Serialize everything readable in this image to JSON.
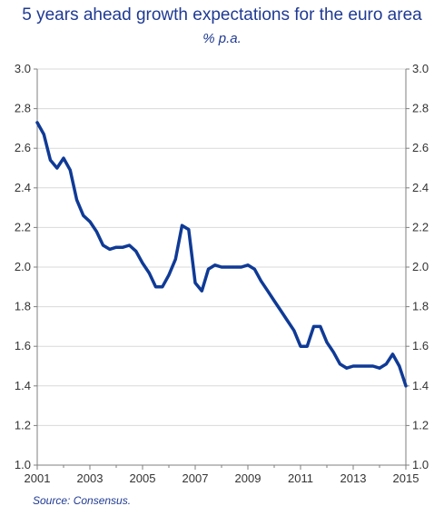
{
  "chart_data": {
    "type": "line",
    "title": "5 years ahead growth expectations for the euro area",
    "subtitle": "% p.a.",
    "xlabel": "",
    "ylabel": "",
    "xlim": [
      2001,
      2015
    ],
    "ylim": [
      1.0,
      3.0
    ],
    "x_ticks": [
      "2001",
      "2003",
      "2005",
      "2007",
      "2009",
      "2011",
      "2013",
      "2015"
    ],
    "y_ticks_left": [
      "3.0",
      "2.8",
      "2.6",
      "2.4",
      "2.2",
      "2.0",
      "1.8",
      "1.6",
      "1.4",
      "1.2",
      "1.0"
    ],
    "y_ticks_right": [
      "3.0",
      "2.8",
      "2.6",
      "2.4",
      "2.2",
      "2.0",
      "1.8",
      "1.6",
      "1.4",
      "1.2",
      "1.0"
    ],
    "grid": "horizontal",
    "series_color": "#0f3a96",
    "series": [
      {
        "name": "",
        "x": [
          2001.0,
          2001.25,
          2001.5,
          2001.75,
          2002.0,
          2002.25,
          2002.5,
          2002.75,
          2003.0,
          2003.25,
          2003.5,
          2003.75,
          2004.0,
          2004.25,
          2004.5,
          2004.75,
          2005.0,
          2005.25,
          2005.5,
          2005.75,
          2006.0,
          2006.25,
          2006.5,
          2006.75,
          2007.0,
          2007.25,
          2007.5,
          2007.75,
          2008.0,
          2008.25,
          2008.5,
          2008.75,
          2009.0,
          2009.25,
          2009.5,
          2009.75,
          2010.0,
          2010.25,
          2010.5,
          2010.75,
          2011.0,
          2011.25,
          2011.5,
          2011.75,
          2012.0,
          2012.25,
          2012.5,
          2012.75,
          2013.0,
          2013.25,
          2013.5,
          2013.75,
          2014.0,
          2014.25,
          2014.5,
          2014.75,
          2015.0
        ],
        "values": [
          2.73,
          2.67,
          2.54,
          2.5,
          2.55,
          2.49,
          2.34,
          2.26,
          2.23,
          2.18,
          2.11,
          2.09,
          2.1,
          2.1,
          2.11,
          2.08,
          2.02,
          1.97,
          1.9,
          1.9,
          1.96,
          2.04,
          2.21,
          2.19,
          1.92,
          1.88,
          1.99,
          2.01,
          2.0,
          2.0,
          2.0,
          2.0,
          2.01,
          1.99,
          1.93,
          1.88,
          1.83,
          1.78,
          1.73,
          1.68,
          1.6,
          1.6,
          1.7,
          1.7,
          1.62,
          1.57,
          1.51,
          1.49,
          1.5,
          1.5,
          1.5,
          1.5,
          1.49,
          1.51,
          1.56,
          1.5,
          1.4
        ]
      }
    ]
  },
  "source_note": "Source: Consensus."
}
